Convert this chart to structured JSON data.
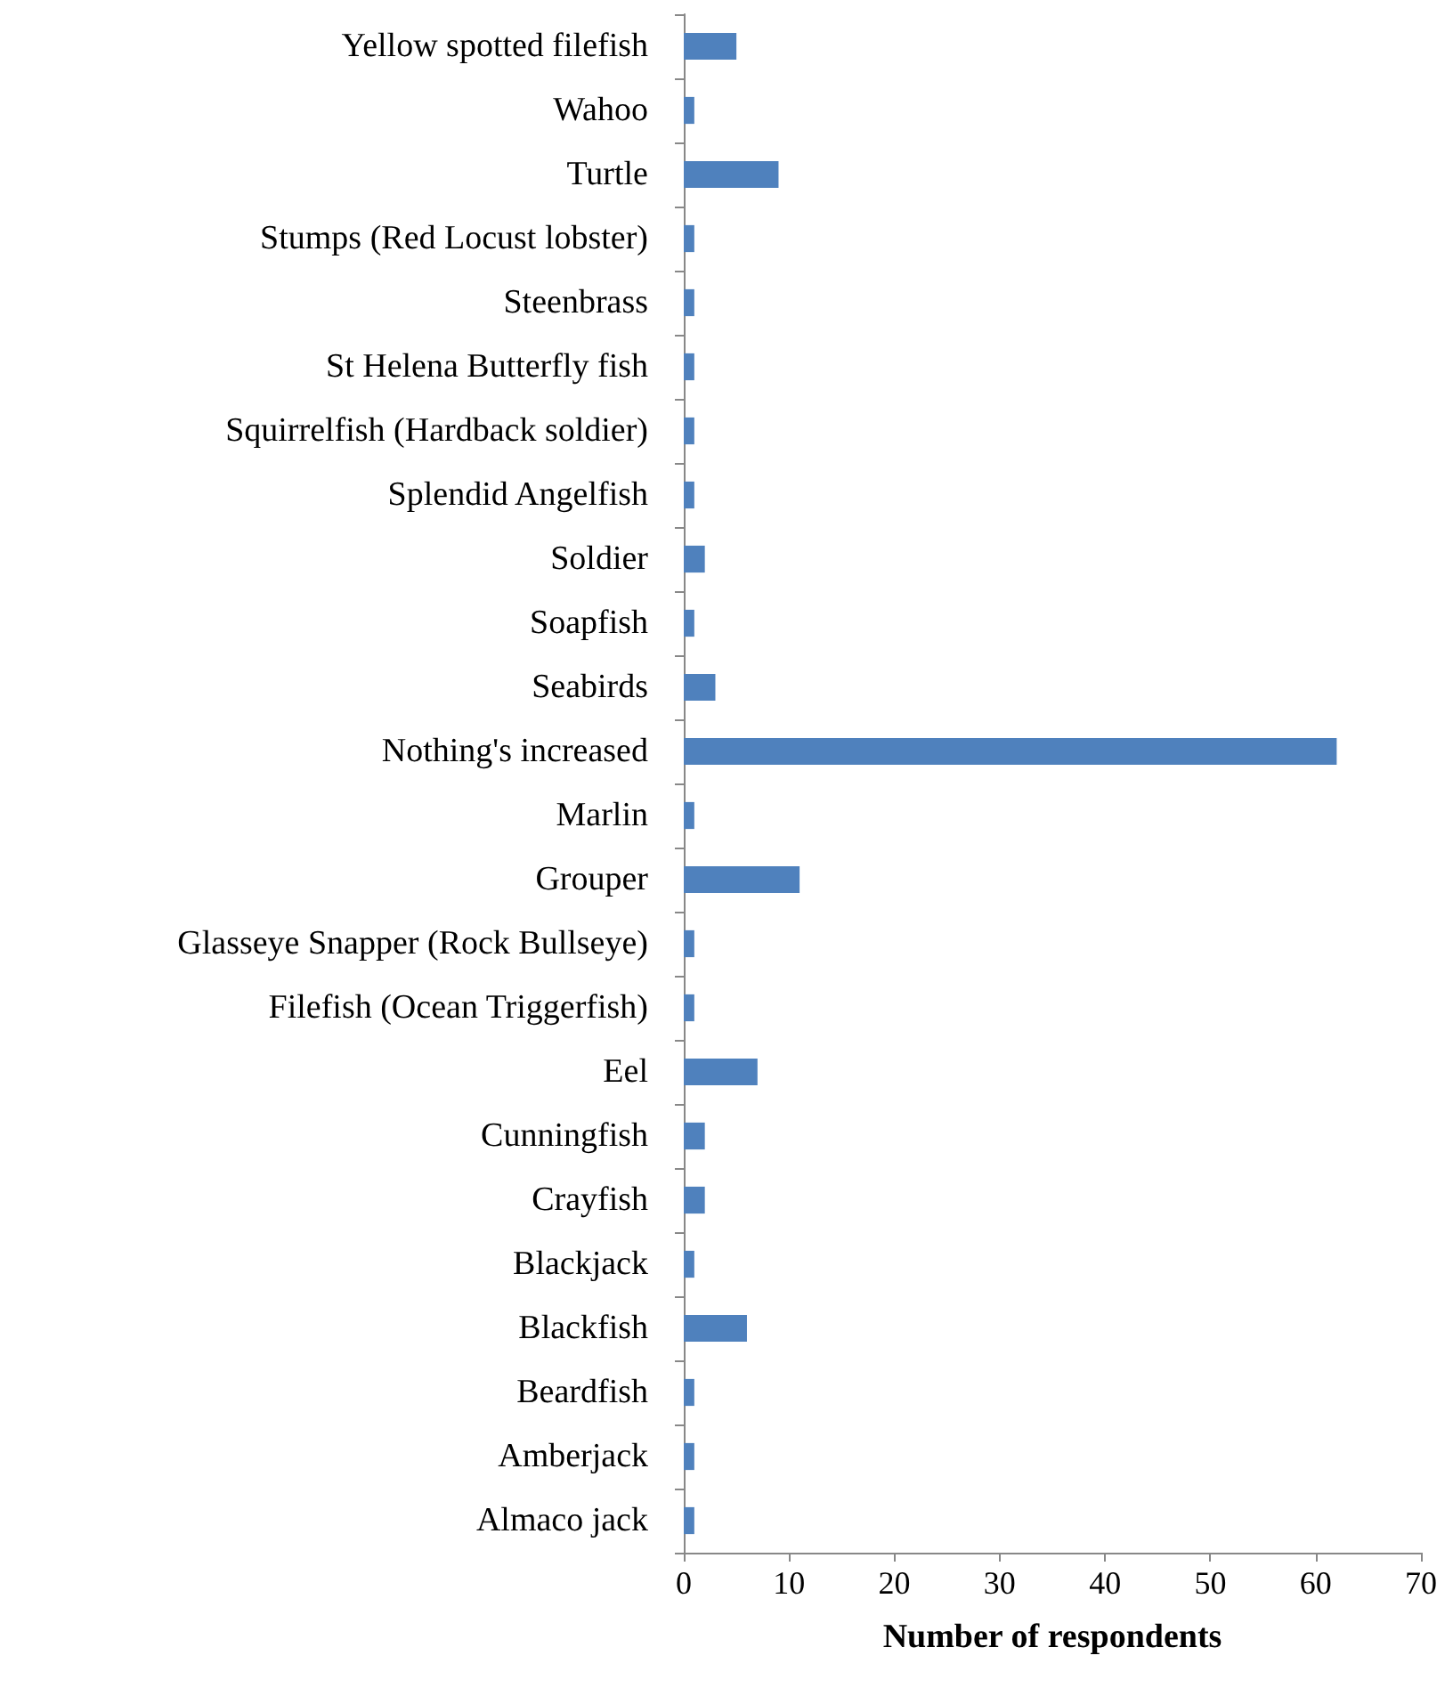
{
  "chart_data": {
    "type": "bar",
    "orientation": "horizontal",
    "xlabel": "Number of respondents",
    "categories": [
      "Yellow spotted filefish",
      "Wahoo",
      "Turtle",
      "Stumps (Red Locust lobster)",
      "Steenbrass",
      "St Helena Butterfly fish",
      "Squirrelfish (Hardback soldier)",
      "Splendid Angelfish",
      "Soldier",
      "Soapfish",
      "Seabirds",
      "Nothing's increased",
      "Marlin",
      "Grouper",
      "Glasseye Snapper (Rock Bullseye)",
      "Filefish (Ocean Triggerfish)",
      "Eel",
      "Cunningfish",
      "Crayfish",
      "Blackjack",
      "Blackfish",
      "Beardfish",
      "Amberjack",
      "Almaco jack"
    ],
    "values": [
      5,
      1,
      9,
      1,
      1,
      1,
      1,
      1,
      2,
      1,
      3,
      62,
      1,
      11,
      1,
      1,
      7,
      2,
      2,
      1,
      6,
      1,
      1,
      1
    ],
    "color": "#4f81bd",
    "xlim": [
      0,
      70
    ],
    "xticks": [
      0,
      10,
      20,
      30,
      40,
      50,
      60,
      70
    ],
    "grid": false
  }
}
